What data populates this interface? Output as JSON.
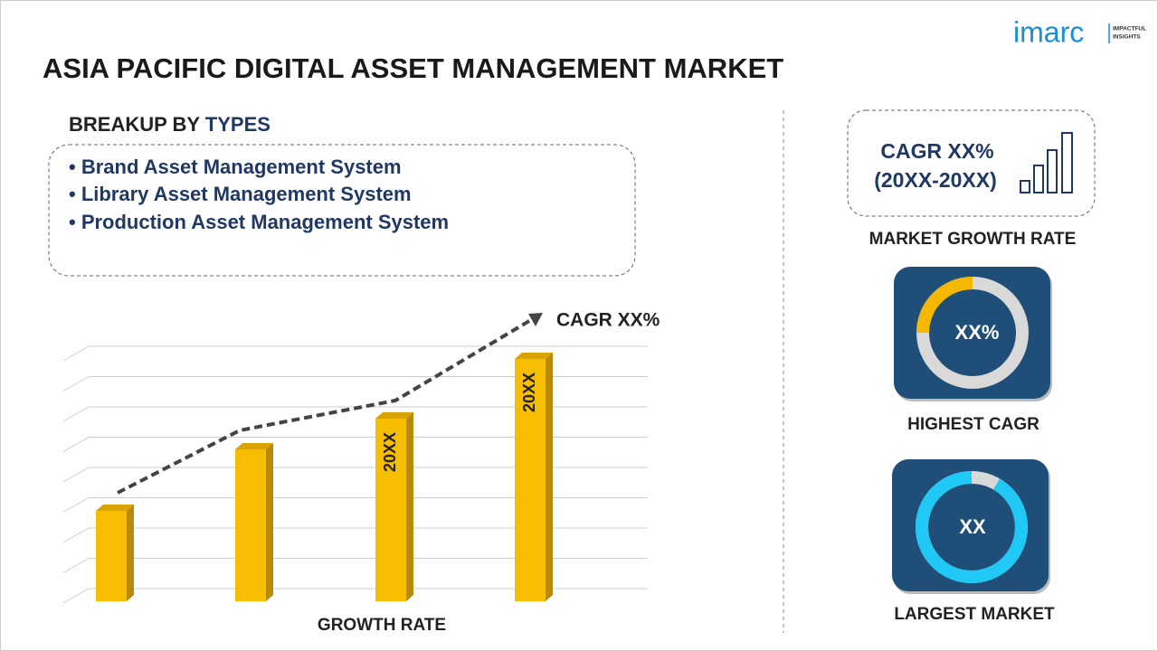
{
  "logo": {
    "brand": "imarc",
    "tagline_1": "IMPACTFUL",
    "tagline_2": "INSIGHTS"
  },
  "title": "ASIA PACIFIC DIGITAL ASSET MANAGEMENT MARKET",
  "breakup": {
    "prefix": "BREAKUP BY",
    "highlight": "TYPES",
    "items": [
      "• Brand Asset Management System",
      "• Library Asset Management System",
      "• Production Asset Management System"
    ]
  },
  "growth_chart": {
    "trend_label": "CAGR XX%",
    "bar_labels": [
      "20XX",
      "20XX"
    ],
    "axis_label": "GROWTH RATE"
  },
  "side_panel": {
    "cagr_line_1": "CAGR XX%",
    "cagr_line_2": "(20XX-20XX)",
    "cagr_caption": "MARKET GROWTH RATE",
    "highest_value": "XX%",
    "highest_caption": "HIGHEST CAGR",
    "largest_value": "XX",
    "largest_caption": "LARGEST MARKET"
  }
}
